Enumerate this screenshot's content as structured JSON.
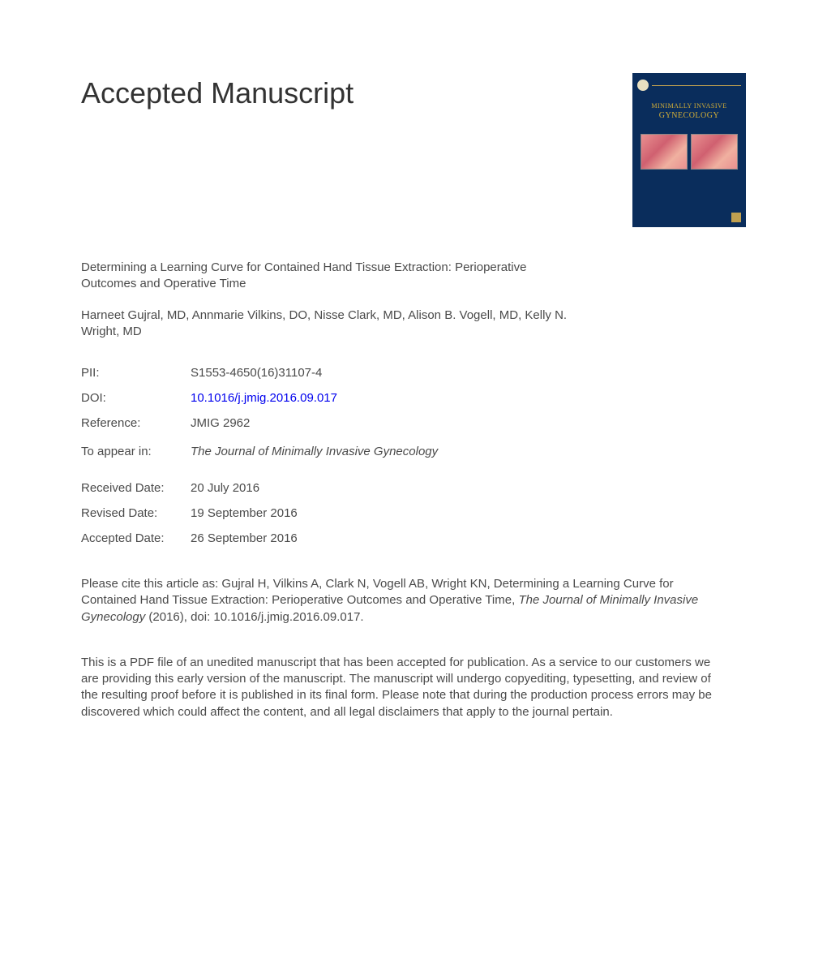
{
  "heading": "Accepted Manuscript",
  "cover": {
    "title_line1": "MINIMALLY INVASIVE",
    "title_line2": "GYNECOLOGY"
  },
  "article": {
    "title": "Determining a Learning Curve for Contained Hand Tissue Extraction: Perioperative Outcomes and Operative Time",
    "authors": "Harneet Gujral, MD, Annmarie Vilkins, DO, Nisse Clark, MD, Alison B. Vogell, MD, Kelly N. Wright, MD"
  },
  "meta": {
    "pii_label": "PII:",
    "pii_value": "S1553-4650(16)31107-4",
    "doi_label": "DOI:",
    "doi_value": "10.1016/j.jmig.2016.09.017",
    "reference_label": "Reference:",
    "reference_value": "JMIG 2962",
    "appear_label": "To appear in:",
    "appear_value": "The Journal of Minimally Invasive Gynecology",
    "received_label": "Received Date:",
    "received_value": "20 July 2016",
    "revised_label": "Revised Date:",
    "revised_value": "19 September 2016",
    "accepted_label": "Accepted Date:",
    "accepted_value": "26 September 2016"
  },
  "citation": {
    "prefix": "Please cite this article as: Gujral H, Vilkins A, Clark N, Vogell AB, Wright KN, Determining a Learning Curve for Contained Hand Tissue Extraction: Perioperative Outcomes and Operative Time, ",
    "journal": "The Journal of Minimally Invasive Gynecology",
    "suffix": " (2016), doi: 10.1016/j.jmig.2016.09.017."
  },
  "disclaimer": "This is a PDF file of an unedited manuscript that has been accepted for publication. As a service to our customers we are providing this early version of the manuscript. The manuscript will undergo copyediting, typesetting, and review of the resulting proof before it is published in its final form. Please note that during the production process errors may be discovered which could affect the content, and all legal disclaimers that apply to the journal pertain."
}
